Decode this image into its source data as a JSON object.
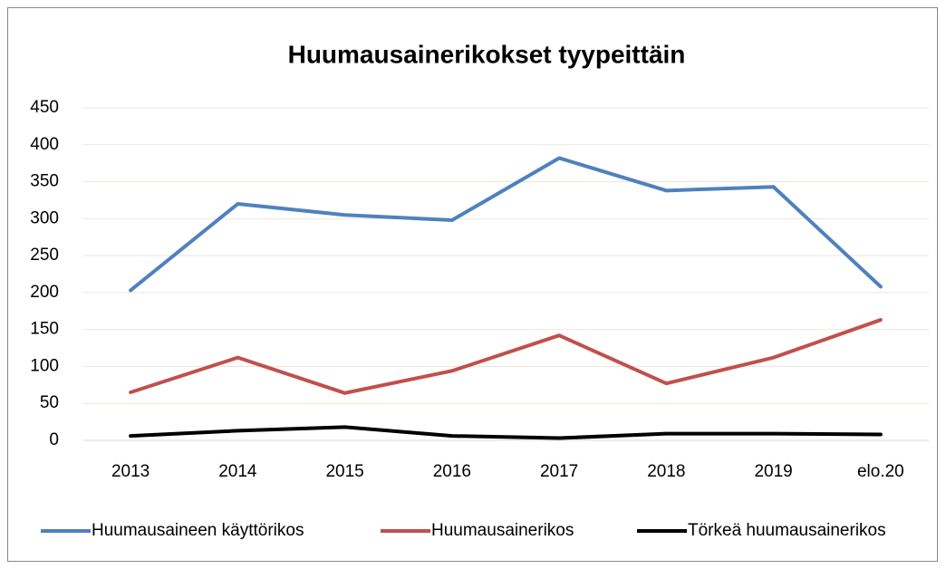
{
  "chart_data": {
    "type": "line",
    "title": "Huumausainerikokset tyypeittäin",
    "categories": [
      "2013",
      "2014",
      "2015",
      "2016",
      "2017",
      "2018",
      "2019",
      "elo.20"
    ],
    "series": [
      {
        "name": "Huumausaineen käyttörikos",
        "color": "#4f81bd",
        "values": [
          203,
          320,
          305,
          298,
          382,
          338,
          343,
          208
        ]
      },
      {
        "name": "Huumausainerikos",
        "color": "#c0504d",
        "values": [
          65,
          112,
          64,
          94,
          142,
          77,
          112,
          163
        ]
      },
      {
        "name": "Törkeä huumausainerikos",
        "color": "#000000",
        "values": [
          6,
          13,
          18,
          6,
          3,
          9,
          9,
          8
        ]
      }
    ],
    "ylim": [
      0,
      450
    ],
    "yticks": [
      0,
      50,
      100,
      150,
      200,
      250,
      300,
      350,
      400,
      450
    ],
    "grid": true,
    "legend": "bottom"
  }
}
